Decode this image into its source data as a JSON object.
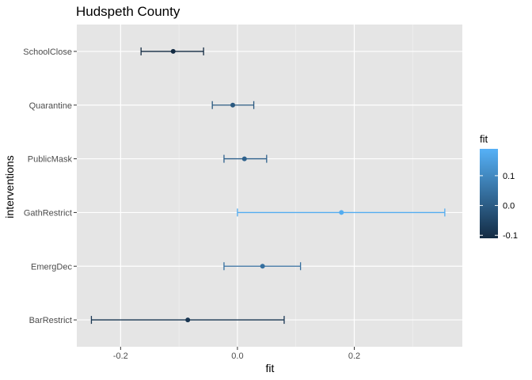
{
  "chart_data": {
    "type": "errorbar",
    "title": "Hudspeth County",
    "xlabel": "fit",
    "ylabel": "interventions",
    "xlim": [
      -0.275,
      0.385
    ],
    "x_ticks": [
      -0.2,
      0.0,
      0.2
    ],
    "x_tick_labels": [
      "-0.2",
      "0.0",
      "0.2"
    ],
    "categories": [
      "SchoolClose",
      "Quarantine",
      "PublicMask",
      "GathRestrict",
      "EmergDec",
      "BarRestrict"
    ],
    "points": [
      {
        "category": "SchoolClose",
        "fit": -0.11,
        "lower": -0.165,
        "upper": -0.058
      },
      {
        "category": "Quarantine",
        "fit": -0.008,
        "lower": -0.043,
        "upper": 0.028
      },
      {
        "category": "PublicMask",
        "fit": 0.012,
        "lower": -0.023,
        "upper": 0.05
      },
      {
        "category": "GathRestrict",
        "fit": 0.178,
        "lower": 0.0,
        "upper": 0.355
      },
      {
        "category": "EmergDec",
        "fit": 0.043,
        "lower": -0.023,
        "upper": 0.108
      },
      {
        "category": "BarRestrict",
        "fit": -0.085,
        "lower": -0.25,
        "upper": 0.08
      }
    ],
    "grid": true,
    "background": "#e5e5e5",
    "legend": {
      "title": "fit",
      "position": "right",
      "range": [
        -0.11,
        0.19
      ],
      "ticks": [
        0.1,
        0.0,
        -0.1
      ],
      "tick_labels": [
        "0.1",
        "0.0",
        "-0.1"
      ],
      "color_low": "#132b43",
      "color_high": "#56b1f7"
    }
  }
}
